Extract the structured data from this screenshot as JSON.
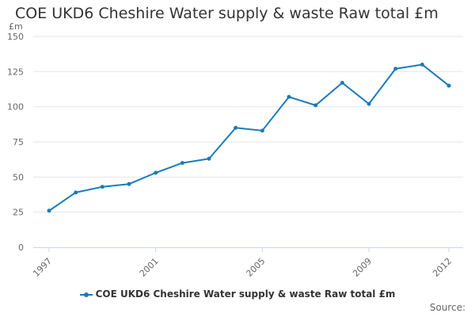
{
  "chart_data": {
    "type": "line",
    "title": "COE UKD6 Cheshire Water supply & waste Raw total £m",
    "unit_label": "£m",
    "xlabel": "",
    "ylabel": "",
    "x": [
      1997,
      1998,
      1999,
      2000,
      2001,
      2002,
      2003,
      2004,
      2005,
      2006,
      2007,
      2008,
      2009,
      2010,
      2011,
      2012
    ],
    "x_tick_labels": [
      "1997",
      "2001",
      "2005",
      "2009",
      "2012"
    ],
    "x_tick_values": [
      1997,
      2001,
      2005,
      2009,
      2012
    ],
    "y_tick_labels": [
      "0",
      "25",
      "50",
      "75",
      "100",
      "125",
      "150"
    ],
    "y_tick_values": [
      0,
      25,
      50,
      75,
      100,
      125,
      150
    ],
    "ylim": [
      0,
      150
    ],
    "xlim": [
      1997,
      2012
    ],
    "grid": true,
    "legend_position": "bottom-center",
    "series": [
      {
        "name": "COE UKD6 Cheshire Water supply & waste Raw total £m",
        "color": "#1a7bb9",
        "values": [
          26,
          39,
          43,
          45,
          53,
          60,
          63,
          85,
          83,
          107,
          101,
          117,
          102,
          127,
          130,
          115
        ]
      }
    ]
  },
  "credits": "Source:"
}
